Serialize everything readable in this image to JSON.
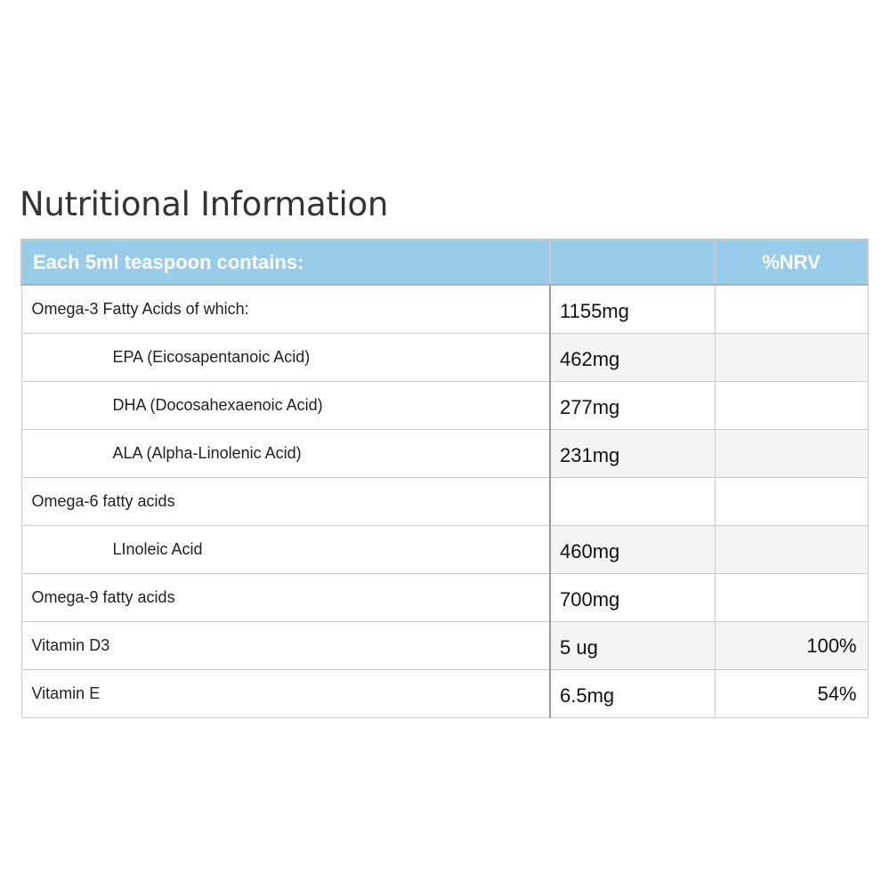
{
  "title": "Nutritional Information",
  "table": {
    "header": {
      "item": "Each 5ml teaspoon contains:",
      "amount": "",
      "nrv": "%NRV"
    },
    "rows": [
      {
        "name": "Omega-3 Fatty Acids of which:",
        "amount": "1155mg",
        "nrv": "",
        "indent": false
      },
      {
        "name": "EPA (Eicosapentanoic Acid)",
        "amount": "462mg",
        "nrv": "",
        "indent": true
      },
      {
        "name": "DHA (Docosahexaenoic Acid)",
        "amount": "277mg",
        "nrv": "",
        "indent": true
      },
      {
        "name": "ALA (Alpha-Linolenic Acid)",
        "amount": "231mg",
        "nrv": "",
        "indent": true
      },
      {
        "name": "Omega-6 fatty acids",
        "amount": "",
        "nrv": "",
        "indent": false
      },
      {
        "name": "LInoleic Acid",
        "amount": "460mg",
        "nrv": "",
        "indent": true
      },
      {
        "name": "Omega-9 fatty acids",
        "amount": "700mg",
        "nrv": "",
        "indent": false
      },
      {
        "name": "Vitamin D3",
        "amount": "5 ug",
        "nrv": "100%",
        "indent": false
      },
      {
        "name": "Vitamin E",
        "amount": "6.5mg",
        "nrv": "54%",
        "indent": false
      }
    ]
  },
  "colors": {
    "header_bg": "#99ccea",
    "header_text": "#ffffff",
    "border": "#c9c9c9",
    "alt_row_bg": "#f4f4f4"
  }
}
